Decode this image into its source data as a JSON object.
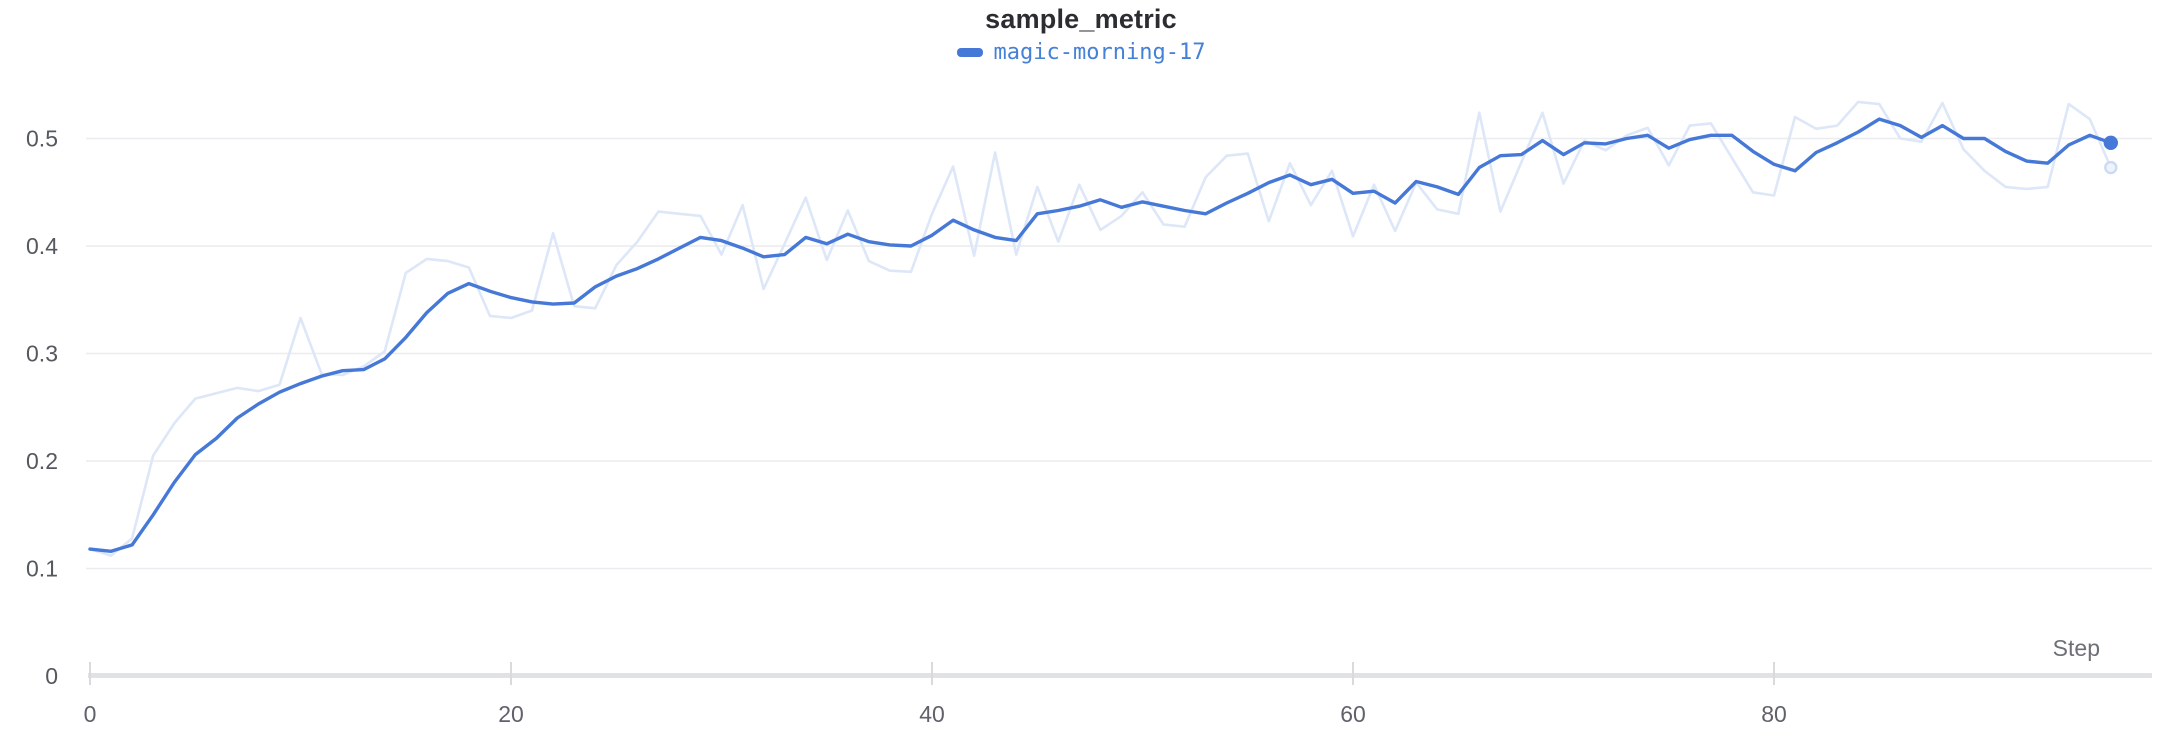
{
  "header": {
    "title": "sample_metric"
  },
  "legend": {
    "items": [
      {
        "label": "magic-morning-17",
        "color": "#4678d7"
      }
    ]
  },
  "axes": {
    "x_label": "Step",
    "x_ticks": [
      0,
      20,
      40,
      60,
      80
    ],
    "y_ticks": [
      0,
      0.1,
      0.2,
      0.3,
      0.4,
      0.5
    ]
  },
  "colors": {
    "accent": "#4678d7",
    "ghost_line": "#dde7f8",
    "ghost_dot_fill": "#eef3fc",
    "ghost_dot_stroke": "#ccdbf4",
    "gridline": "#ebecef",
    "axis_baseline": "#e1e2e6",
    "tick_mark": "#d8dade",
    "title_text": "#2b2d31",
    "y_label_text": "#55585f",
    "x_label_text": "#5f626a"
  },
  "chart_data": {
    "type": "line",
    "title": "sample_metric",
    "xlabel": "Step",
    "ylabel": "",
    "x_range": [
      0,
      97
    ],
    "ylim": [
      0,
      0.55
    ],
    "grid": "horizontal",
    "legend_position": "top-center",
    "x": [
      0,
      1,
      2,
      3,
      4,
      5,
      6,
      7,
      8,
      9,
      10,
      11,
      12,
      13,
      14,
      15,
      16,
      17,
      18,
      19,
      20,
      21,
      22,
      23,
      24,
      25,
      26,
      27,
      28,
      29,
      30,
      31,
      32,
      33,
      34,
      35,
      36,
      37,
      38,
      39,
      40,
      41,
      42,
      43,
      44,
      45,
      46,
      47,
      48,
      49,
      50,
      51,
      52,
      53,
      54,
      55,
      56,
      57,
      58,
      59,
      60,
      61,
      62,
      63,
      64,
      65,
      66,
      67,
      68,
      69,
      70,
      71,
      72,
      73,
      74,
      75,
      76,
      77,
      78,
      79,
      80,
      81,
      82,
      83,
      84,
      85,
      86,
      87,
      88,
      89,
      90,
      91,
      92,
      93,
      94,
      95,
      96
    ],
    "series": [
      {
        "name": "magic-morning-17 (original)",
        "role": "raw",
        "color": "#dde7f8",
        "values": [
          0.118,
          0.112,
          0.128,
          0.205,
          0.235,
          0.258,
          0.263,
          0.268,
          0.265,
          0.271,
          0.333,
          0.281,
          0.28,
          0.288,
          0.302,
          0.375,
          0.388,
          0.386,
          0.38,
          0.335,
          0.333,
          0.34,
          0.412,
          0.344,
          0.342,
          0.382,
          0.404,
          0.432,
          0.43,
          0.428,
          0.392,
          0.438,
          0.36,
          0.402,
          0.445,
          0.387,
          0.433,
          0.386,
          0.377,
          0.376,
          0.43,
          0.474,
          0.391,
          0.487,
          0.392,
          0.455,
          0.404,
          0.457,
          0.415,
          0.428,
          0.45,
          0.42,
          0.418,
          0.464,
          0.484,
          0.486,
          0.423,
          0.477,
          0.438,
          0.47,
          0.409,
          0.457,
          0.414,
          0.459,
          0.434,
          0.43,
          0.524,
          0.432,
          0.478,
          0.524,
          0.458,
          0.498,
          0.489,
          0.503,
          0.51,
          0.475,
          0.512,
          0.514,
          0.482,
          0.45,
          0.447,
          0.52,
          0.509,
          0.512,
          0.534,
          0.532,
          0.5,
          0.497,
          0.533,
          0.49,
          0.47,
          0.455,
          0.453,
          0.455,
          0.532,
          0.518,
          0.473
        ]
      },
      {
        "name": "magic-morning-17",
        "role": "smoothed",
        "color": "#4678d7",
        "values": [
          0.118,
          0.116,
          0.122,
          0.15,
          0.18,
          0.206,
          0.221,
          0.24,
          0.253,
          0.264,
          0.272,
          0.279,
          0.284,
          0.285,
          0.295,
          0.315,
          0.338,
          0.356,
          0.365,
          0.358,
          0.352,
          0.348,
          0.346,
          0.347,
          0.362,
          0.372,
          0.379,
          0.388,
          0.398,
          0.408,
          0.405,
          0.398,
          0.39,
          0.392,
          0.408,
          0.402,
          0.411,
          0.404,
          0.401,
          0.4,
          0.41,
          0.424,
          0.415,
          0.408,
          0.405,
          0.43,
          0.433,
          0.437,
          0.443,
          0.436,
          0.441,
          0.437,
          0.433,
          0.43,
          0.44,
          0.449,
          0.459,
          0.466,
          0.457,
          0.462,
          0.449,
          0.451,
          0.44,
          0.46,
          0.455,
          0.448,
          0.473,
          0.484,
          0.485,
          0.498,
          0.485,
          0.496,
          0.495,
          0.5,
          0.503,
          0.491,
          0.499,
          0.503,
          0.503,
          0.488,
          0.476,
          0.47,
          0.487,
          0.496,
          0.506,
          0.518,
          0.512,
          0.501,
          0.512,
          0.5,
          0.5,
          0.488,
          0.479,
          0.477,
          0.494,
          0.503,
          0.496
        ]
      }
    ]
  }
}
